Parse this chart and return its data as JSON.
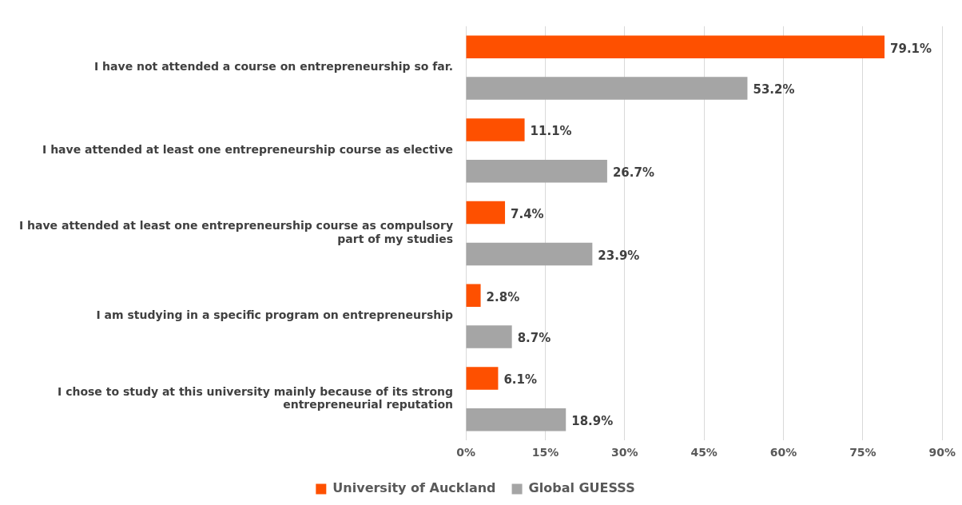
{
  "chart_data": {
    "type": "bar",
    "orientation": "horizontal",
    "categories": [
      "I have not attended a course on entrepreneurship so far.",
      "I have attended at least one entrepreneurship course as elective",
      "I have attended at least one entrepreneurship course as compulsory part of my studies",
      "I am studying in a specific program on entrepreneurship",
      "I chose to study at this university mainly because of its strong entrepreneurial reputation"
    ],
    "series": [
      {
        "name": "University of Auckland",
        "color": "#fe5000",
        "values": [
          79.1,
          11.1,
          7.4,
          2.8,
          6.1
        ],
        "value_labels": [
          "79.1%",
          "11.1%",
          "7.4%",
          "2.8%",
          "6.1%"
        ]
      },
      {
        "name": "Global GUESSS",
        "color": "#a5a5a5",
        "values": [
          53.2,
          26.7,
          23.9,
          8.7,
          18.9
        ],
        "value_labels": [
          "53.2%",
          "26.7%",
          "23.9%",
          "8.7%",
          "18.9%"
        ]
      }
    ],
    "xlim": [
      0,
      90
    ],
    "xticks": [
      {
        "value": 0,
        "label": "0%"
      },
      {
        "value": 15,
        "label": "15%"
      },
      {
        "value": 30,
        "label": "30%"
      },
      {
        "value": 45,
        "label": "45%"
      },
      {
        "value": 60,
        "label": "60%"
      },
      {
        "value": 75,
        "label": "75%"
      },
      {
        "value": 90,
        "label": "90%"
      }
    ],
    "grid": "x",
    "legend": "bottom"
  }
}
